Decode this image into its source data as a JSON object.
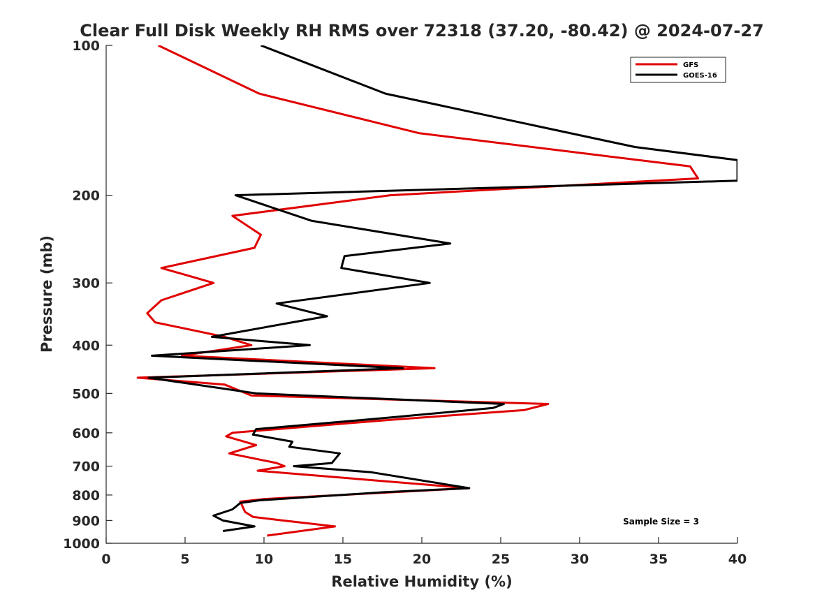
{
  "chart_data": {
    "type": "line",
    "title": "Clear Full Disk Weekly RH RMS over 72318 (37.20, -80.42) @ 2024-07-27",
    "xlabel": "Relative Humidity (%)",
    "ylabel": "Pressure (mb)",
    "xlim": [
      0,
      40
    ],
    "ylim": [
      1000,
      100
    ],
    "yscale": "log",
    "y_inverted": true,
    "xticks": [
      0,
      5,
      10,
      15,
      20,
      25,
      30,
      35,
      40
    ],
    "yticks": [
      100,
      200,
      300,
      400,
      500,
      600,
      700,
      800,
      900,
      1000
    ],
    "grid": false,
    "legend_position": "top-right",
    "annotation": "Sample Size = 3",
    "series": [
      {
        "name": "GFS",
        "color": "#e00000",
        "points": [
          [
            3.3,
            100
          ],
          [
            9.7,
            125
          ],
          [
            19.8,
            150
          ],
          [
            37.0,
            175
          ],
          [
            37.5,
            185
          ],
          [
            18.0,
            200
          ],
          [
            8.0,
            220
          ],
          [
            9.8,
            240
          ],
          [
            9.4,
            255
          ],
          [
            3.5,
            280
          ],
          [
            6.8,
            300
          ],
          [
            3.5,
            325
          ],
          [
            2.6,
            345
          ],
          [
            3.1,
            360
          ],
          [
            7.5,
            385
          ],
          [
            9.2,
            400
          ],
          [
            4.8,
            420
          ],
          [
            20.8,
            445
          ],
          [
            2.0,
            465
          ],
          [
            7.5,
            480
          ],
          [
            9.2,
            505
          ],
          [
            28.0,
            525
          ],
          [
            26.5,
            540
          ],
          [
            18.0,
            565
          ],
          [
            8.0,
            600
          ],
          [
            7.6,
            610
          ],
          [
            9.5,
            635
          ],
          [
            7.8,
            660
          ],
          [
            10.8,
            690
          ],
          [
            11.3,
            700
          ],
          [
            9.6,
            715
          ],
          [
            23.0,
            775
          ],
          [
            10.0,
            815
          ],
          [
            8.5,
            825
          ],
          [
            8.8,
            865
          ],
          [
            9.3,
            885
          ],
          [
            11.2,
            900
          ],
          [
            14.5,
            925
          ],
          [
            10.2,
            965
          ]
        ]
      },
      {
        "name": "GOES-16",
        "color": "#000000",
        "points": [
          [
            9.8,
            100
          ],
          [
            17.7,
            125
          ],
          [
            33.5,
            160
          ],
          [
            40.0,
            170
          ],
          [
            40.0,
            187
          ],
          [
            8.2,
            200
          ],
          [
            13.0,
            225
          ],
          [
            21.8,
            250
          ],
          [
            15.1,
            265
          ],
          [
            14.9,
            280
          ],
          [
            20.5,
            300
          ],
          [
            10.8,
            330
          ],
          [
            14.0,
            350
          ],
          [
            11.8,
            360
          ],
          [
            6.7,
            385
          ],
          [
            12.9,
            400
          ],
          [
            2.9,
            420
          ],
          [
            18.8,
            445
          ],
          [
            2.7,
            465
          ],
          [
            9.5,
            500
          ],
          [
            25.2,
            525
          ],
          [
            24.5,
            535
          ],
          [
            17.7,
            560
          ],
          [
            9.5,
            590
          ],
          [
            9.3,
            605
          ],
          [
            11.8,
            625
          ],
          [
            11.6,
            640
          ],
          [
            14.8,
            660
          ],
          [
            14.3,
            690
          ],
          [
            11.9,
            700
          ],
          [
            16.8,
            720
          ],
          [
            23.0,
            775
          ],
          [
            17.5,
            790
          ],
          [
            9.7,
            820
          ],
          [
            8.5,
            830
          ],
          [
            8.0,
            855
          ],
          [
            6.8,
            880
          ],
          [
            7.4,
            900
          ],
          [
            9.4,
            925
          ],
          [
            7.4,
            945
          ]
        ]
      }
    ]
  }
}
